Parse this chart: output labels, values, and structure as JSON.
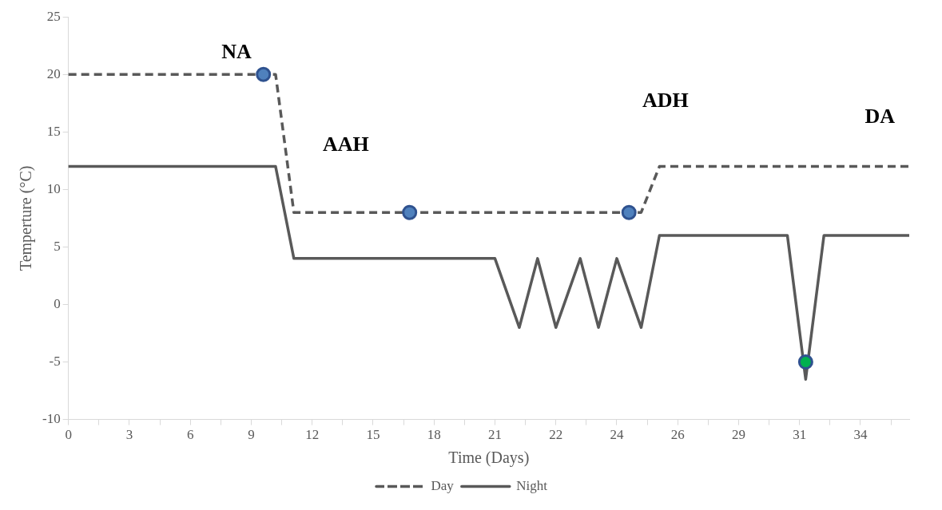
{
  "chart_data": {
    "type": "line",
    "xlabel": "Time (Days)",
    "ylabel": "Temperture (°C)",
    "categories": [
      "0",
      null,
      null,
      null,
      null,
      null,
      null,
      null,
      null,
      null,
      "3",
      null,
      null,
      null,
      null,
      null,
      null,
      null,
      null,
      null,
      "6",
      null,
      null,
      null,
      null,
      null,
      null,
      null,
      null,
      null,
      "9",
      null,
      null,
      null,
      null,
      null,
      null,
      null,
      null,
      null,
      "12",
      null,
      null,
      null,
      null,
      null,
      null,
      null,
      null,
      null,
      "15",
      null,
      null,
      null,
      null,
      null,
      null,
      null,
      null,
      null,
      "18",
      null,
      null,
      null,
      null,
      null,
      null,
      null,
      null,
      null,
      "21",
      null,
      null,
      null,
      null,
      null,
      null,
      null,
      null,
      null,
      "22",
      null,
      null,
      null,
      null,
      null,
      null,
      null,
      null,
      null,
      "24",
      null,
      null,
      null,
      null,
      null,
      null,
      null,
      null,
      null,
      "26",
      null,
      null,
      null,
      null,
      null,
      null,
      null,
      null,
      null,
      "29",
      null,
      null,
      null,
      null,
      null,
      null,
      null,
      null,
      null,
      "31",
      null,
      null,
      null,
      null,
      null,
      null,
      null,
      null,
      null,
      "34",
      null,
      null,
      null,
      null,
      null,
      null,
      null,
      null
    ],
    "ylim": [
      -10,
      25
    ],
    "yticks": [
      -10,
      -5,
      0,
      5,
      10,
      15,
      20,
      25
    ],
    "grid": false,
    "legend": "bottom",
    "series": [
      {
        "name": "Day",
        "color": "#595959",
        "line_style": "dashed",
        "marker": "none",
        "values": [
          20,
          null,
          null,
          null,
          null,
          null,
          null,
          null,
          null,
          null,
          null,
          null,
          null,
          null,
          null,
          null,
          null,
          null,
          null,
          null,
          null,
          null,
          null,
          null,
          null,
          null,
          null,
          null,
          null,
          null,
          null,
          null,
          null,
          null,
          20,
          null,
          null,
          8,
          null,
          null,
          null,
          null,
          null,
          null,
          null,
          null,
          null,
          null,
          null,
          null,
          null,
          null,
          null,
          null,
          null,
          null,
          null,
          null,
          null,
          null,
          null,
          null,
          null,
          null,
          null,
          null,
          null,
          null,
          null,
          null,
          null,
          null,
          null,
          null,
          null,
          null,
          null,
          null,
          null,
          null,
          null,
          null,
          null,
          null,
          null,
          null,
          null,
          null,
          null,
          null,
          null,
          null,
          null,
          null,
          8,
          null,
          null,
          12,
          null,
          null,
          null,
          null,
          null,
          null,
          null,
          null,
          null,
          null,
          null,
          null,
          null,
          null,
          null,
          null,
          null,
          null,
          null,
          null,
          null,
          null,
          null,
          null,
          null,
          null,
          null,
          null,
          null,
          null,
          null,
          null,
          null,
          null,
          null,
          null,
          null,
          null,
          null,
          null,
          12
        ]
      },
      {
        "name": "Night",
        "color": "#595959",
        "line_style": "solid",
        "marker": "none",
        "values": [
          12,
          null,
          null,
          null,
          null,
          null,
          null,
          null,
          null,
          null,
          null,
          null,
          null,
          null,
          null,
          null,
          null,
          null,
          null,
          null,
          null,
          null,
          null,
          null,
          null,
          null,
          null,
          null,
          null,
          null,
          null,
          null,
          null,
          null,
          12,
          null,
          null,
          4,
          null,
          null,
          null,
          null,
          null,
          null,
          null,
          null,
          null,
          null,
          null,
          null,
          null,
          null,
          null,
          null,
          null,
          null,
          null,
          null,
          null,
          null,
          null,
          null,
          null,
          null,
          null,
          null,
          null,
          null,
          null,
          null,
          4,
          null,
          null,
          null,
          -2,
          null,
          null,
          4,
          null,
          null,
          -2,
          null,
          null,
          null,
          4,
          null,
          null,
          -2,
          null,
          null,
          4,
          null,
          null,
          null,
          -2,
          null,
          null,
          6,
          null,
          null,
          null,
          null,
          null,
          null,
          null,
          null,
          null,
          null,
          null,
          null,
          null,
          null,
          null,
          null,
          null,
          null,
          null,
          null,
          6,
          null,
          null,
          -6.5,
          null,
          null,
          6,
          null,
          null,
          null,
          null,
          null,
          null,
          null,
          null,
          null,
          null,
          null,
          null,
          null,
          6
        ]
      },
      {
        "type": "scatter",
        "marker": "circle",
        "color": "#4f81bd",
        "values": [
          null,
          null,
          null,
          null,
          null,
          null,
          null,
          null,
          null,
          null,
          null,
          null,
          null,
          null,
          null,
          null,
          null,
          null,
          null,
          null,
          null,
          null,
          null,
          null,
          null,
          null,
          null,
          null,
          null,
          null,
          null,
          null,
          20,
          null,
          null,
          null,
          null,
          null,
          null,
          null,
          null,
          null,
          null,
          null,
          null,
          null,
          null,
          null,
          null,
          null,
          null,
          null,
          null,
          null,
          null,
          null,
          8,
          null,
          null,
          null,
          null,
          null,
          null,
          null,
          null,
          null,
          null,
          null,
          null,
          null,
          null,
          null,
          null,
          null,
          null,
          null,
          null,
          null,
          null,
          null,
          null,
          null,
          null,
          null,
          null,
          null,
          null,
          null,
          null,
          null,
          null,
          null,
          8,
          null,
          null,
          null,
          null,
          null,
          null,
          null,
          null,
          null,
          null,
          null,
          null,
          null,
          null,
          null,
          null,
          null,
          null,
          null,
          null,
          null,
          null,
          null,
          null,
          null,
          null,
          null,
          null,
          null,
          null,
          null,
          null,
          null,
          null,
          null,
          null,
          null,
          null,
          null,
          null,
          null,
          null,
          null,
          null,
          null,
          null
        ]
      },
      {
        "type": "scatter",
        "marker": "circle",
        "color": "#00b050",
        "values": [
          null,
          null,
          null,
          null,
          null,
          null,
          null,
          null,
          null,
          null,
          null,
          null,
          null,
          null,
          null,
          null,
          null,
          null,
          null,
          null,
          null,
          null,
          null,
          null,
          null,
          null,
          null,
          null,
          null,
          null,
          null,
          null,
          null,
          null,
          null,
          null,
          null,
          null,
          null,
          null,
          null,
          null,
          null,
          null,
          null,
          null,
          null,
          null,
          null,
          null,
          null,
          null,
          null,
          null,
          null,
          null,
          null,
          null,
          null,
          null,
          null,
          null,
          null,
          null,
          null,
          null,
          null,
          null,
          null,
          null,
          null,
          null,
          null,
          null,
          null,
          null,
          null,
          null,
          null,
          null,
          null,
          null,
          null,
          null,
          null,
          null,
          null,
          null,
          null,
          null,
          null,
          null,
          null,
          null,
          null,
          null,
          null,
          null,
          null,
          null,
          null,
          null,
          null,
          null,
          null,
          null,
          null,
          null,
          null,
          null,
          null,
          null,
          null,
          null,
          null,
          null,
          null,
          null,
          null,
          null,
          null,
          -5,
          null,
          null,
          null,
          null,
          null,
          null,
          null,
          null,
          null,
          null,
          null,
          null,
          null,
          null,
          null,
          null,
          null
        ]
      }
    ],
    "annotations": [
      "NA",
      "AAH",
      "ADH",
      "DA"
    ]
  }
}
